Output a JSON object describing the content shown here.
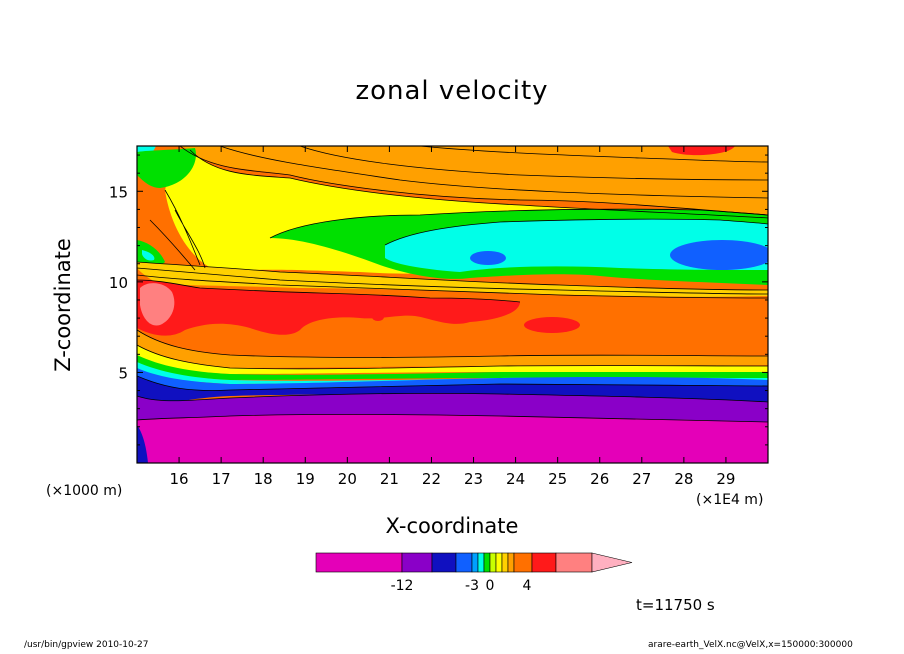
{
  "chart_data": {
    "type": "heatmap",
    "title": "zonal velocity",
    "xlabel": "X-coordinate",
    "ylabel": "Z-coordinate",
    "x_multiplier_label": "(×1E4 m)",
    "y_multiplier_label": "(×1000 m)",
    "x_ticks": [
      16,
      17,
      18,
      19,
      20,
      21,
      22,
      23,
      24,
      25,
      26,
      27,
      28,
      29
    ],
    "y_ticks": [
      5,
      10,
      15
    ],
    "xlim": [
      15.0,
      30.0
    ],
    "ylim": [
      0.0,
      17.5
    ],
    "colorbar": {
      "labels": [
        "-12",
        "-3",
        "0",
        "4"
      ],
      "colors": [
        "#e400b8",
        "#8a00c8",
        "#1010c0",
        "#1060ff",
        "#00a0ff",
        "#00ffe8",
        "#00e000",
        "#c8ff00",
        "#ffff00",
        "#ffd000",
        "#ffa000",
        "#ff7000",
        "#ff1a1a",
        "#ff8080",
        "#ffb0c0"
      ]
    },
    "layers": [
      {
        "z_top": 2.2,
        "value": "< -12",
        "color": "#e400b8"
      },
      {
        "z_top": 3.5,
        "value": "-12 to -9",
        "color": "#8a00c8"
      },
      {
        "z_top": 4.5,
        "value": "-9 to -6",
        "color": "#1010c0"
      },
      {
        "z_top": 6.0,
        "value": "-6 to 0",
        "color": "#1060ff"
      },
      {
        "z_top": 6.5,
        "value": "0 to 4",
        "color": "#ffd000"
      },
      {
        "z_top": 10.0,
        "value": "4 to 8",
        "color": "#ff7000"
      },
      {
        "z_top": 12.0,
        "value": "0 to 4",
        "color": "#ffd000"
      },
      {
        "z_top": 13.5,
        "value": "-3 to 0",
        "color": "#00e000"
      },
      {
        "z_top": 15.0,
        "value": "0 to 2",
        "color": "#ffff00"
      },
      {
        "z_top": 17.5,
        "value": "2 to 6",
        "color": "#ffa000"
      }
    ],
    "time_label": "t=11750 s"
  },
  "footer": {
    "left": "/usr/bin/gpview  2010-10-27",
    "right": "arare-earth_VelX.nc@VelX,x=150000:300000"
  }
}
